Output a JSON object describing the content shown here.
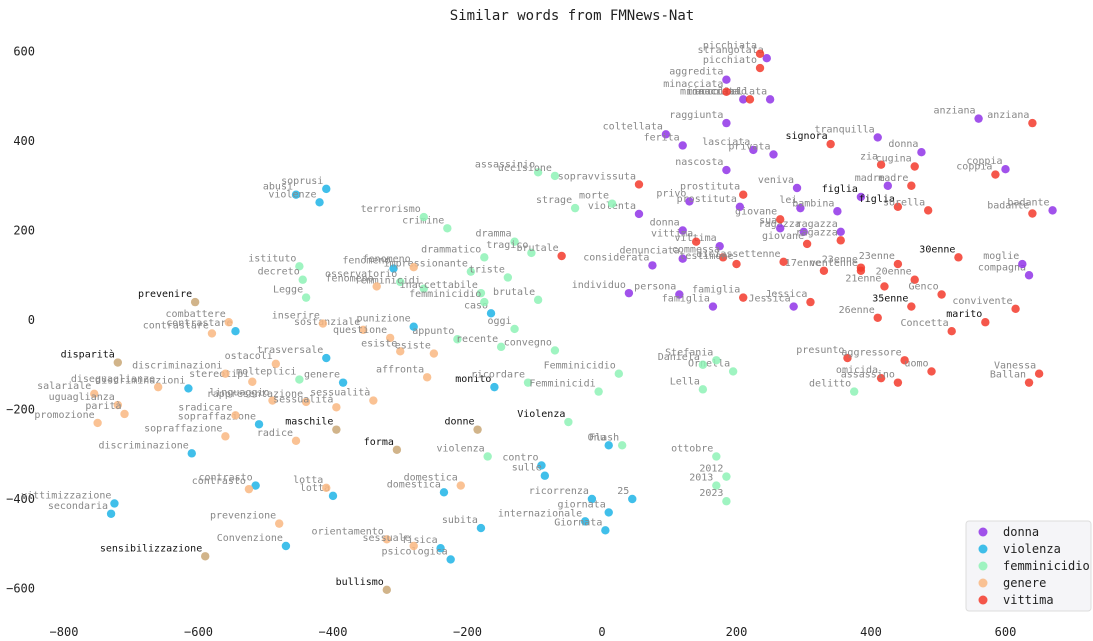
{
  "chart_data": {
    "type": "scatter",
    "title": "Similar words from FMNews-Nat",
    "xlabel": "",
    "ylabel": "",
    "xlim": [
      -820,
      730
    ],
    "ylim": [
      -680,
      645
    ],
    "x_ticks": [
      -800,
      -600,
      -400,
      -200,
      0,
      200,
      400,
      600
    ],
    "y_ticks": [
      600,
      400,
      200,
      0,
      -200,
      -400,
      -600
    ],
    "grid": false,
    "legend_position": "bottom-right",
    "series": [
      {
        "name": "donna",
        "color": "#9134e8",
        "points": [
          [
            245,
            585,
            "strangolata"
          ],
          [
            185,
            537,
            "aggredita"
          ],
          [
            210,
            493,
            "minacciata"
          ],
          [
            250,
            493,
            "accoltellata"
          ],
          [
            185,
            440,
            "raggiunta"
          ],
          [
            95,
            415,
            "coltellata"
          ],
          [
            120,
            390,
            "ferita"
          ],
          [
            225,
            380,
            "lasciata"
          ],
          [
            255,
            370,
            "privata"
          ],
          [
            185,
            335,
            "nascosta"
          ],
          [
            290,
            295,
            "veniva"
          ],
          [
            130,
            265,
            "privo"
          ],
          [
            205,
            253,
            "prostituta"
          ],
          [
            295,
            250,
            "lei"
          ],
          [
            55,
            237,
            "violenta"
          ],
          [
            410,
            408,
            "tranquilla"
          ],
          [
            425,
            300,
            "madre"
          ],
          [
            385,
            275,
            "figlia"
          ],
          [
            350,
            243,
            "bambina"
          ],
          [
            300,
            197,
            "ragazza"
          ],
          [
            265,
            205,
            "sua"
          ],
          [
            355,
            197,
            "ragazza"
          ],
          [
            175,
            165,
            "vittima"
          ],
          [
            120,
            200,
            "donna"
          ],
          [
            120,
            137,
            "denunciata"
          ],
          [
            75,
            122,
            "considerata"
          ],
          [
            40,
            60,
            "individuo"
          ],
          [
            115,
            57,
            "persona"
          ],
          [
            165,
            30,
            "famiglia"
          ],
          [
            285,
            30,
            "Jessica"
          ],
          [
            600,
            337,
            "coppia"
          ],
          [
            670,
            245,
            "badante"
          ],
          [
            635,
            100,
            "compagna"
          ],
          [
            625,
            125,
            "moglie"
          ],
          [
            560,
            450,
            "anziana"
          ],
          [
            475,
            375,
            "donna"
          ]
        ]
      },
      {
        "name": "violenza",
        "color": "#1fb4e6",
        "points": [
          [
            -410,
            293,
            "soprusi"
          ],
          [
            -455,
            280,
            "abusi"
          ],
          [
            -420,
            263,
            "violenze"
          ],
          [
            -310,
            115,
            "fenomeno"
          ],
          [
            -165,
            15,
            "caso"
          ],
          [
            -280,
            -15,
            "punizione"
          ],
          [
            -410,
            -85,
            "trasversale"
          ],
          [
            -385,
            -140,
            "genere"
          ],
          [
            -615,
            -153,
            "discriminazioni"
          ],
          [
            -545,
            -25,
            "contrastare"
          ],
          [
            -510,
            -233,
            "sopraffazione"
          ],
          [
            -610,
            -298,
            "discriminazione"
          ],
          [
            -725,
            -410,
            "vittimizzazione"
          ],
          [
            -730,
            -433,
            "secondaria"
          ],
          [
            -515,
            -370,
            "contrasto"
          ],
          [
            -400,
            -393,
            "lotta"
          ],
          [
            -470,
            -505,
            "Convenzione"
          ],
          [
            -235,
            -385,
            "domestica"
          ],
          [
            -240,
            -510,
            "fisica"
          ],
          [
            -225,
            -535,
            "psicologica"
          ],
          [
            -180,
            -465,
            "subita"
          ],
          [
            -90,
            -325,
            "contro"
          ],
          [
            -85,
            -348,
            "sulle"
          ],
          [
            -15,
            -400,
            "ricorrenza"
          ],
          [
            10,
            -280,
            "Onu"
          ],
          [
            -25,
            -450,
            "internazionale"
          ],
          [
            10,
            -430,
            "giornata"
          ],
          [
            45,
            -400,
            "25"
          ],
          [
            5,
            -470,
            "Giornata"
          ],
          [
            -160,
            -150,
            "monito"
          ]
        ]
      },
      {
        "name": "femminicidio",
        "color": "#8ef2b6",
        "points": [
          [
            -95,
            330,
            "assassinio"
          ],
          [
            -70,
            322,
            "uccisione"
          ],
          [
            -40,
            250,
            "strage"
          ],
          [
            15,
            260,
            "morte"
          ],
          [
            -230,
            205,
            "crimine"
          ],
          [
            -265,
            230,
            "terrorismo"
          ],
          [
            -130,
            175,
            "dramma"
          ],
          [
            -105,
            150,
            "tragico"
          ],
          [
            -175,
            140,
            "drammatico"
          ],
          [
            -195,
            108,
            "impressionante"
          ],
          [
            -140,
            95,
            "triste"
          ],
          [
            -300,
            85,
            "osservatorio"
          ],
          [
            -265,
            70,
            "femminicidi"
          ],
          [
            -180,
            60,
            "inaccettabile"
          ],
          [
            -95,
            45,
            "brutale"
          ],
          [
            -175,
            40,
            "femminicidio"
          ],
          [
            -130,
            -20,
            "oggi"
          ],
          [
            -215,
            -43,
            "appunto"
          ],
          [
            -150,
            -60,
            "recente"
          ],
          [
            -70,
            -68,
            "convegno"
          ],
          [
            -450,
            120,
            "istituto"
          ],
          [
            -445,
            90,
            "decreto"
          ],
          [
            -440,
            50,
            "Legge"
          ],
          [
            -450,
            -133,
            "molteplici"
          ],
          [
            25,
            -120,
            "Femminicidio"
          ],
          [
            -110,
            -140,
            "ricordare"
          ],
          [
            -5,
            -160,
            "Femminicidi"
          ],
          [
            -170,
            -305,
            "violenza"
          ],
          [
            30,
            -280,
            "Flash"
          ],
          [
            195,
            -115,
            "Ornella"
          ],
          [
            150,
            -100,
            "Daniela"
          ],
          [
            170,
            -90,
            "Stefania"
          ],
          [
            150,
            -155,
            "Lella"
          ],
          [
            170,
            -305,
            "ottobre"
          ],
          [
            185,
            -350,
            "2012"
          ],
          [
            170,
            -370,
            "2013"
          ],
          [
            185,
            -405,
            "2023"
          ],
          [
            375,
            -160,
            "delitto"
          ],
          [
            -50,
            -228,
            "Violenza"
          ]
        ]
      },
      {
        "name": "genere",
        "color": "#f9b781",
        "points": [
          [
            -335,
            75,
            "fenomeno"
          ],
          [
            -280,
            118,
            "fenomeno"
          ],
          [
            -355,
            -22,
            "sostanziale"
          ],
          [
            -415,
            -8,
            "inserire"
          ],
          [
            -315,
            -40,
            "questione"
          ],
          [
            -300,
            -70,
            "esiste"
          ],
          [
            -250,
            -75,
            "esiste"
          ],
          [
            -485,
            -98,
            "ostacoli"
          ],
          [
            -260,
            -128,
            "affronta"
          ],
          [
            -520,
            -138,
            "stereotipi"
          ],
          [
            -340,
            -180,
            "sessualità"
          ],
          [
            -490,
            -180,
            "linguaggio"
          ],
          [
            -440,
            -183,
            "rappresentazione"
          ],
          [
            -395,
            -195,
            "sessualità"
          ],
          [
            -545,
            -213,
            "sradicare"
          ],
          [
            -560,
            -260,
            "sopraffazione"
          ],
          [
            -455,
            -270,
            "radice"
          ],
          [
            -580,
            -30,
            "contrastare"
          ],
          [
            -560,
            -120,
            "discriminazioni"
          ],
          [
            -660,
            -150,
            "diseguaglianze"
          ],
          [
            -755,
            -165,
            "salariale"
          ],
          [
            -720,
            -190,
            "uguaglianza"
          ],
          [
            -750,
            -230,
            "promozione"
          ],
          [
            -710,
            -210,
            "parità"
          ],
          [
            -525,
            -378,
            "contrasto"
          ],
          [
            -410,
            -375,
            "lotta"
          ],
          [
            -210,
            -370,
            "domestica"
          ],
          [
            -480,
            -455,
            "prevenzione"
          ],
          [
            -320,
            -490,
            "orientamento"
          ],
          [
            -280,
            -505,
            "sessuale"
          ],
          [
            -555,
            -5,
            "combattere"
          ]
        ]
      },
      {
        "name": "vittima",
        "color": "#f3392b",
        "points": [
          [
            235,
            595,
            "picchiata"
          ],
          [
            235,
            563,
            "picchiato"
          ],
          [
            220,
            493,
            "minacciato"
          ],
          [
            55,
            303,
            "sopravvissuta"
          ],
          [
            210,
            280,
            "prostituta"
          ],
          [
            340,
            393,
            "signora"
          ],
          [
            415,
            347,
            "zia"
          ],
          [
            465,
            343,
            "cugina"
          ],
          [
            460,
            300,
            "madre"
          ],
          [
            440,
            253,
            "figlia"
          ],
          [
            485,
            245,
            "sorella"
          ],
          [
            640,
            440,
            "anziana"
          ],
          [
            585,
            325,
            "coppia"
          ],
          [
            640,
            238,
            "badante"
          ],
          [
            265,
            225,
            "giovane"
          ],
          [
            305,
            170,
            "giovane"
          ],
          [
            355,
            178,
            "ragazza"
          ],
          [
            180,
            140,
            "commessa"
          ],
          [
            200,
            125,
            "testimone"
          ],
          [
            270,
            130,
            "diciassettenne"
          ],
          [
            330,
            110,
            "17enne"
          ],
          [
            385,
            117,
            "23enne"
          ],
          [
            440,
            125,
            "23enne"
          ],
          [
            465,
            90,
            "20enne"
          ],
          [
            420,
            75,
            "21enne"
          ],
          [
            505,
            57,
            "Genco"
          ],
          [
            460,
            30,
            "35enne"
          ],
          [
            410,
            5,
            "26enne"
          ],
          [
            310,
            40,
            "Jessica"
          ],
          [
            520,
            -25,
            "Concetta"
          ],
          [
            570,
            -5,
            "marito"
          ],
          [
            615,
            25,
            "convivente"
          ],
          [
            530,
            140,
            "30enne"
          ],
          [
            385,
            110,
            "ventenne"
          ],
          [
            365,
            -85,
            "presunto"
          ],
          [
            450,
            -90,
            "aggressore"
          ],
          [
            415,
            -130,
            "omicida"
          ],
          [
            440,
            -140,
            "assassino"
          ],
          [
            490,
            -115,
            "uomo"
          ],
          [
            635,
            -140,
            "Ballan"
          ],
          [
            650,
            -120,
            "Vanessa"
          ],
          [
            210,
            50,
            "famiglia"
          ],
          [
            140,
            175,
            "vittima"
          ],
          [
            -60,
            143,
            "brutale"
          ],
          [
            185,
            510,
            "minacciata"
          ]
        ]
      },
      {
        "name": "",
        "color": "#c9a776",
        "points": [
          [
            -605,
            40,
            "prevenire"
          ],
          [
            -720,
            -95,
            "disparità"
          ],
          [
            -395,
            -245,
            "maschile"
          ],
          [
            -185,
            -245,
            "donne"
          ],
          [
            -305,
            -290,
            "forma"
          ],
          [
            -590,
            -528,
            "sensibilizzazione"
          ],
          [
            -320,
            -603,
            "bullismo"
          ]
        ]
      }
    ]
  },
  "legend": {
    "items": [
      {
        "label": "donna",
        "color": "#9134e8"
      },
      {
        "label": "violenza",
        "color": "#1fb4e6"
      },
      {
        "label": "femminicidio",
        "color": "#8ef2b6"
      },
      {
        "label": "genere",
        "color": "#f9b781"
      },
      {
        "label": "vittima",
        "color": "#f3392b"
      }
    ]
  },
  "bold_labels": [
    "prevenire",
    "disparità",
    "maschile",
    "donne",
    "forma",
    "sensibilizzazione",
    "bullismo",
    "monito",
    "Violenza",
    "signora",
    "figlia",
    "30enne",
    "35enne",
    "marito"
  ]
}
